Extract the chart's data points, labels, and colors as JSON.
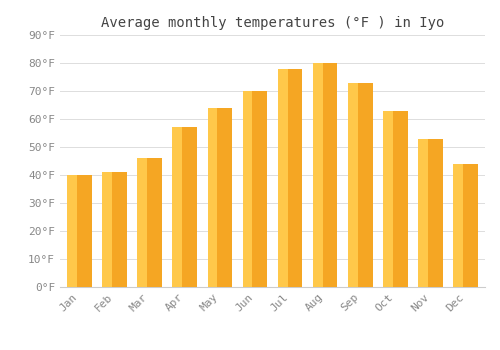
{
  "title": "Average monthly temperatures (°F ) in Iyo",
  "months": [
    "Jan",
    "Feb",
    "Mar",
    "Apr",
    "May",
    "Jun",
    "Jul",
    "Aug",
    "Sep",
    "Oct",
    "Nov",
    "Dec"
  ],
  "values": [
    40,
    41,
    46,
    57,
    64,
    70,
    78,
    80,
    73,
    63,
    53,
    44
  ],
  "bar_color_main": "#F5A623",
  "bar_color_light": "#FFC84A",
  "background_color": "#FFFFFF",
  "plot_bg_color": "#FFFFFF",
  "ylim": [
    0,
    90
  ],
  "yticks": [
    0,
    10,
    20,
    30,
    40,
    50,
    60,
    70,
    80,
    90
  ],
  "grid_color": "#DDDDDD",
  "title_fontsize": 10,
  "tick_fontsize": 8,
  "tick_color": "#888888",
  "title_color": "#444444"
}
